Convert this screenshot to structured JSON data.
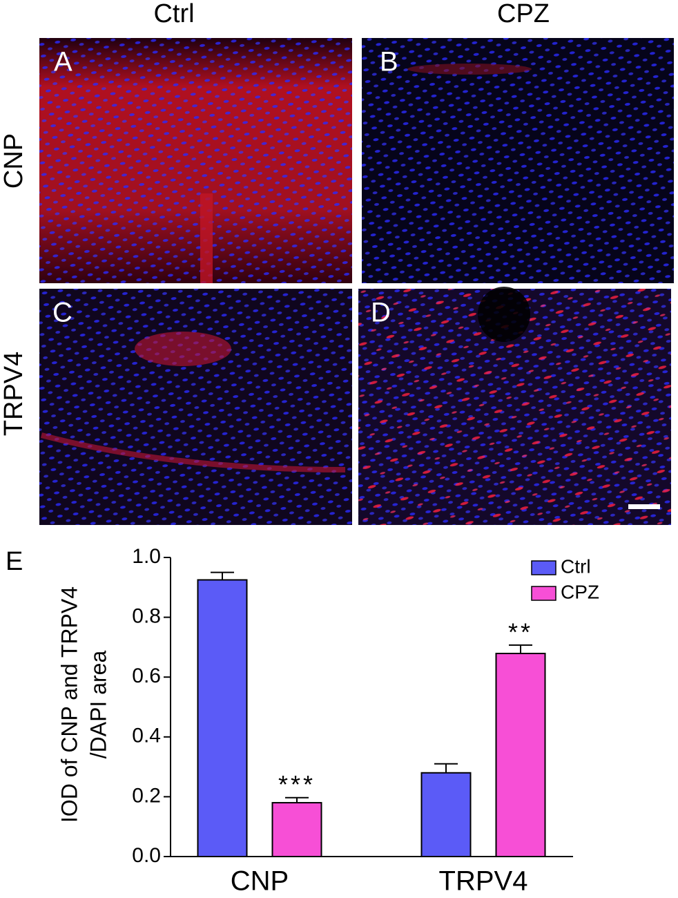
{
  "figure": {
    "columns": [
      "Ctrl",
      "CPZ"
    ],
    "rows": [
      "CNP",
      "TRPV4"
    ],
    "panels": [
      "A",
      "B",
      "C",
      "D"
    ]
  },
  "chart_data": {
    "type": "bar",
    "panel": "E",
    "ylabel": [
      "IOD of CNP and TRPV4",
      "/DAPI area"
    ],
    "categories": [
      "CNP",
      "TRPV4"
    ],
    "series": [
      {
        "name": "Ctrl",
        "color": "#5b5bf7",
        "values": [
          0.925,
          0.28
        ],
        "errors": [
          0.025,
          0.03
        ]
      },
      {
        "name": "CPZ",
        "color": "#f74fd6",
        "values": [
          0.18,
          0.679
        ],
        "errors": [
          0.017,
          0.028
        ],
        "annotations": [
          "***",
          "**"
        ]
      }
    ],
    "ylim": [
      0,
      1
    ],
    "yticks": [
      {
        "value": 0,
        "label": "0.0"
      },
      0.2,
      0.4,
      0.6,
      0.8,
      {
        "value": 1,
        "label": "1.0"
      }
    ],
    "legend": "upper right"
  }
}
